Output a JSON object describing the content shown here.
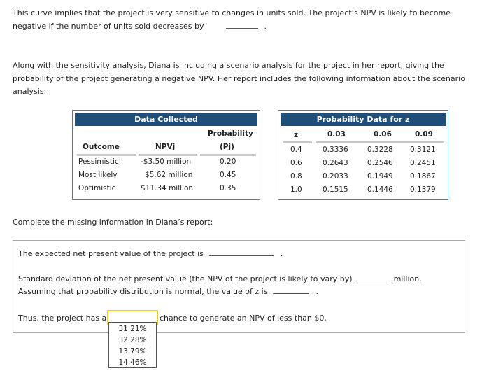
{
  "intro": {
    "line1": "This curve implies that the project is very sensitive to changes in units sold. The project’s NPV is likely to become",
    "line2_pre": "negative if the number of units sold decreases by",
    "line2_post": "."
  },
  "scenario_intro": {
    "line1": "Along with the sensitivity analysis, Diana is including a scenario analysis for the project in her report, giving the",
    "line2": "probability of the project generating a negative NPV. Her report includes the following information about the scenario",
    "line3": "analysis:"
  },
  "data_collected": {
    "title": "Data Collected",
    "headers": {
      "outcome": "Outcome",
      "npv": "NPVj",
      "prob_line1": "Probability",
      "prob_line2": "(Pj)"
    },
    "rows": [
      {
        "outcome": "Pessimistic",
        "npv": "-$3.50 million",
        "prob": "0.20"
      },
      {
        "outcome": "Most likely",
        "npv": "$5.62 million",
        "prob": "0.45"
      },
      {
        "outcome": "Optimistic",
        "npv": "$11.34 million",
        "prob": "0.35"
      }
    ]
  },
  "prob_data": {
    "title": "Probability Data for z",
    "z_header": "z",
    "columns": [
      "0.03",
      "0.06",
      "0.09"
    ],
    "rows": [
      {
        "z": "0.4",
        "values": [
          "0.3336",
          "0.3228",
          "0.3121"
        ]
      },
      {
        "z": "0.6",
        "values": [
          "0.2643",
          "0.2546",
          "0.2451"
        ]
      },
      {
        "z": "0.8",
        "values": [
          "0.2033",
          "0.1949",
          "0.1867"
        ]
      },
      {
        "z": "1.0",
        "values": [
          "0.1515",
          "0.1446",
          "0.1379"
        ]
      }
    ]
  },
  "complete_prompt": "Complete the missing information in Diana’s report:",
  "report": {
    "expected_npv_pre": "The expected net present value of the project is",
    "expected_npv_post": ".",
    "stddev_pre": "Standard deviation of the net present value (the NPV of the project is likely to vary by)",
    "stddev_post": "million.",
    "z_pre": "Assuming that probability distribution is normal, the value of z is",
    "z_post": ".",
    "chance_pre": "Thus, the project has a",
    "chance_post": "chance to generate an NPV of less than $0.",
    "dropdown_value": "",
    "options": [
      "31.21%",
      "32.28%",
      "13.79%",
      "14.46%"
    ]
  }
}
